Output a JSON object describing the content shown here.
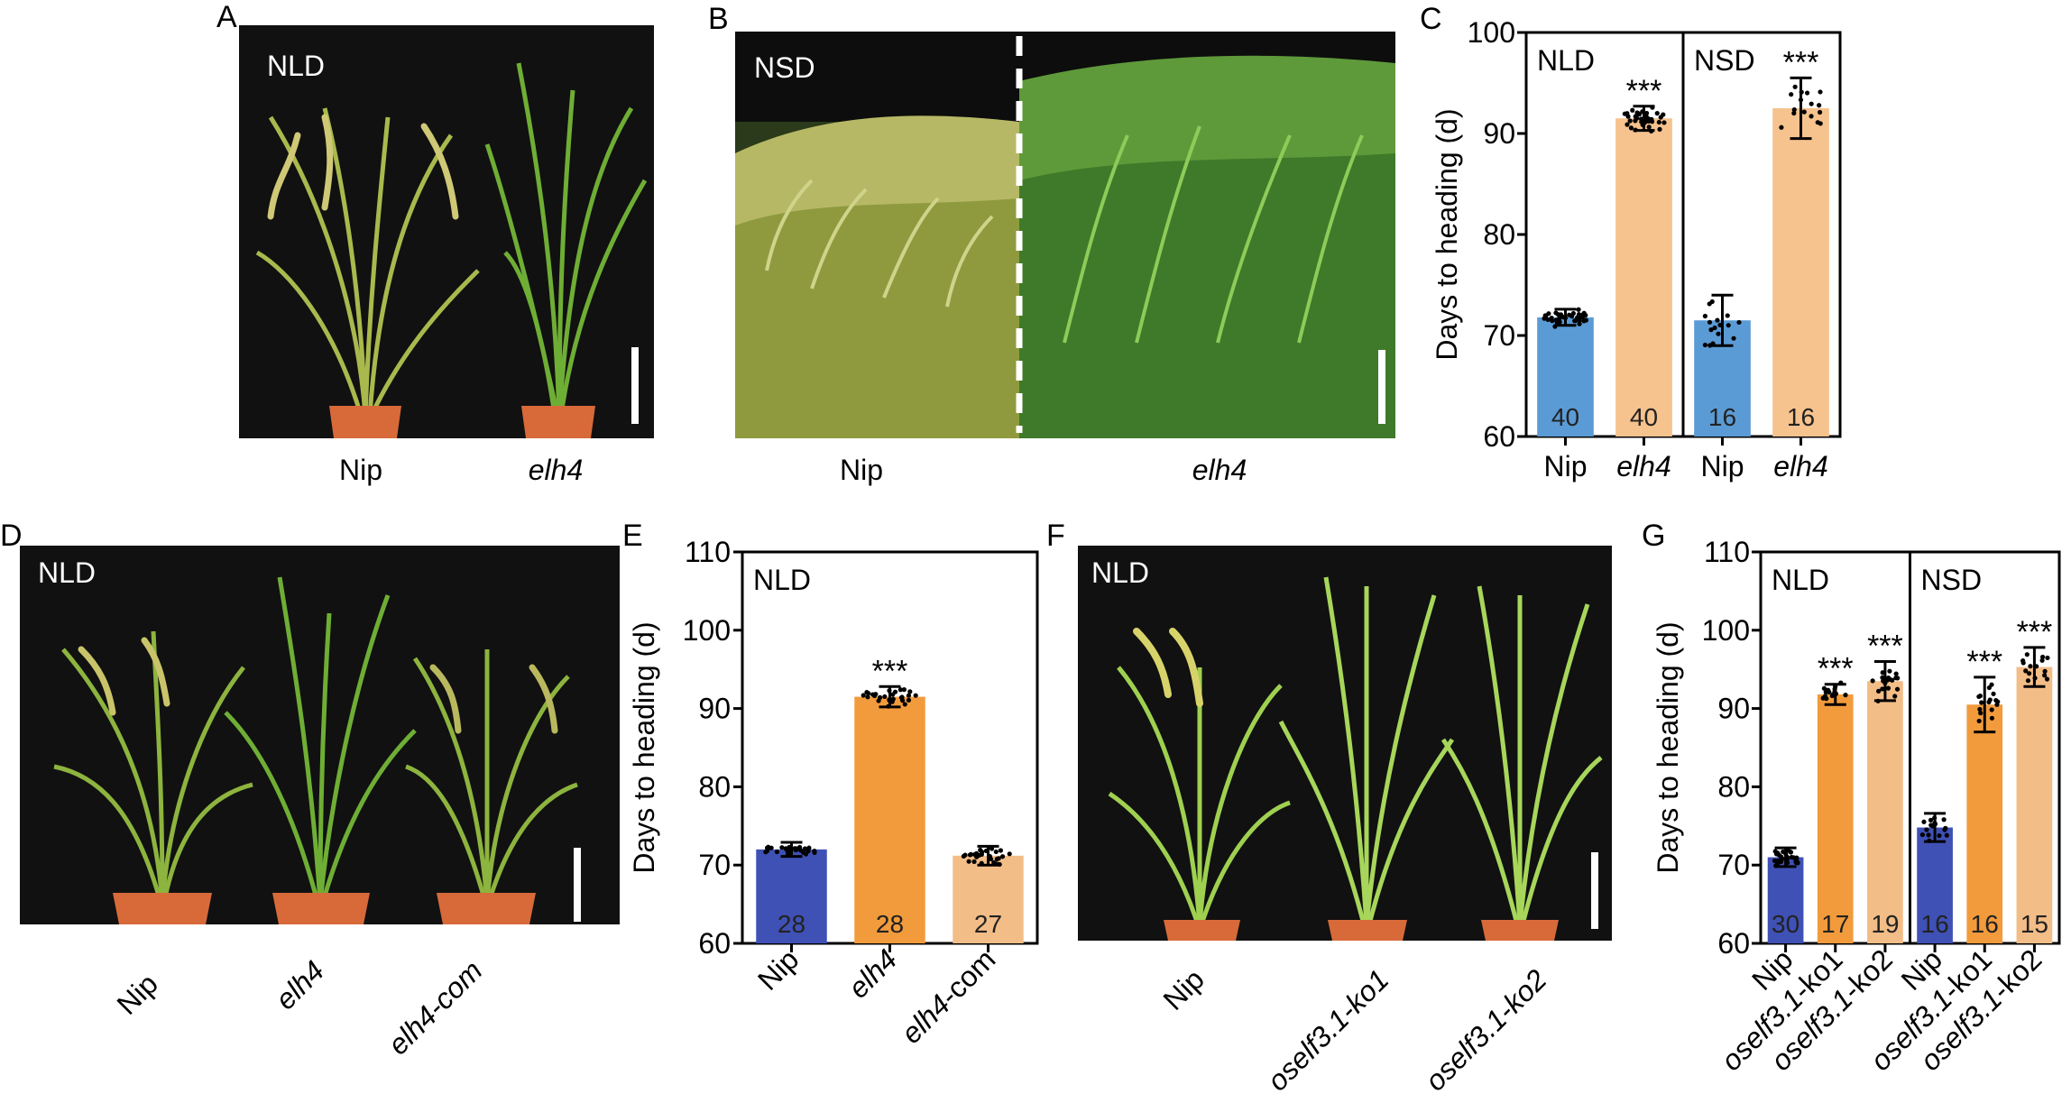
{
  "panels": {
    "A": {
      "letter": "A",
      "condition": "NLD",
      "labels": [
        "Nip",
        "elh4"
      ]
    },
    "B": {
      "letter": "B",
      "condition": "NSD",
      "labels": [
        "Nip",
        "elh4"
      ]
    },
    "C": {
      "letter": "C"
    },
    "D": {
      "letter": "D",
      "condition": "NLD",
      "labels": [
        "Nip",
        "elh4",
        "elh4-com"
      ]
    },
    "E": {
      "letter": "E"
    },
    "F": {
      "letter": "F",
      "condition": "NLD",
      "labels": [
        "Nip",
        "oself3.1-ko1",
        "oself3.1-ko2"
      ]
    },
    "G": {
      "letter": "G"
    }
  },
  "colors": {
    "blue": "#5b9bd5",
    "light_orange": "#f6c28e",
    "navy": "#3f51b5",
    "orange": "#f29b3c",
    "tan": "#f3bd87",
    "photo_bg": "#111111",
    "pot": "#d86a3a",
    "plant": "#7fb03a",
    "panicle": "#c9c46a"
  },
  "chart_data": [
    {
      "panel": "C",
      "type": "bar",
      "ylabel": "Days to heading (d)",
      "ylim": [
        60,
        100
      ],
      "yticks": [
        "60",
        "70",
        "80",
        "90",
        "100"
      ],
      "groups": [
        {
          "label": "NLD",
          "categories": [
            "Nip",
            "elh4"
          ],
          "values": [
            71.8,
            91.5
          ],
          "sd": [
            0.8,
            1.2
          ],
          "n": [
            "40",
            "40"
          ],
          "sig": [
            "",
            "***"
          ],
          "colors": [
            "blue",
            "light_orange"
          ]
        },
        {
          "label": "NSD",
          "categories": [
            "Nip",
            "elh4"
          ],
          "values": [
            71.5,
            92.5
          ],
          "sd": [
            2.5,
            3.0
          ],
          "n": [
            "16",
            "16"
          ],
          "sig": [
            "",
            "***"
          ],
          "colors": [
            "blue",
            "light_orange"
          ]
        }
      ]
    },
    {
      "panel": "E",
      "type": "bar",
      "ylabel": "Days to heading (d)",
      "ylim": [
        60,
        110
      ],
      "yticks": [
        "60",
        "70",
        "80",
        "90",
        "100",
        "110"
      ],
      "groups": [
        {
          "label": "NLD",
          "categories": [
            "Nip",
            "elh4",
            "elh4-com"
          ],
          "values": [
            72.0,
            91.5,
            71.2
          ],
          "sd": [
            0.9,
            1.3,
            1.2
          ],
          "n": [
            "28",
            "28",
            "27"
          ],
          "sig": [
            "",
            "***",
            ""
          ],
          "colors": [
            "navy",
            "orange",
            "tan"
          ]
        }
      ]
    },
    {
      "panel": "G",
      "type": "bar",
      "ylabel": "Days to heading (d)",
      "ylim": [
        60,
        110
      ],
      "yticks": [
        "60",
        "70",
        "80",
        "90",
        "100",
        "110"
      ],
      "groups": [
        {
          "label": "NLD",
          "categories": [
            "Nip",
            "oself3.1-ko1",
            "oself3.1-ko2"
          ],
          "values": [
            71.0,
            91.8,
            93.5
          ],
          "sd": [
            1.2,
            1.3,
            2.5
          ],
          "n": [
            "30",
            "17",
            "19"
          ],
          "sig": [
            "",
            "***",
            "***"
          ],
          "colors": [
            "navy",
            "orange",
            "tan"
          ]
        },
        {
          "label": "NSD",
          "categories": [
            "Nip",
            "oself3.1-ko1",
            "oself3.1-ko2"
          ],
          "values": [
            74.8,
            90.5,
            95.3
          ],
          "sd": [
            1.8,
            3.5,
            2.5
          ],
          "n": [
            "16",
            "16",
            "15"
          ],
          "sig": [
            "",
            "***",
            "***"
          ],
          "colors": [
            "navy",
            "orange",
            "tan"
          ]
        }
      ]
    }
  ]
}
